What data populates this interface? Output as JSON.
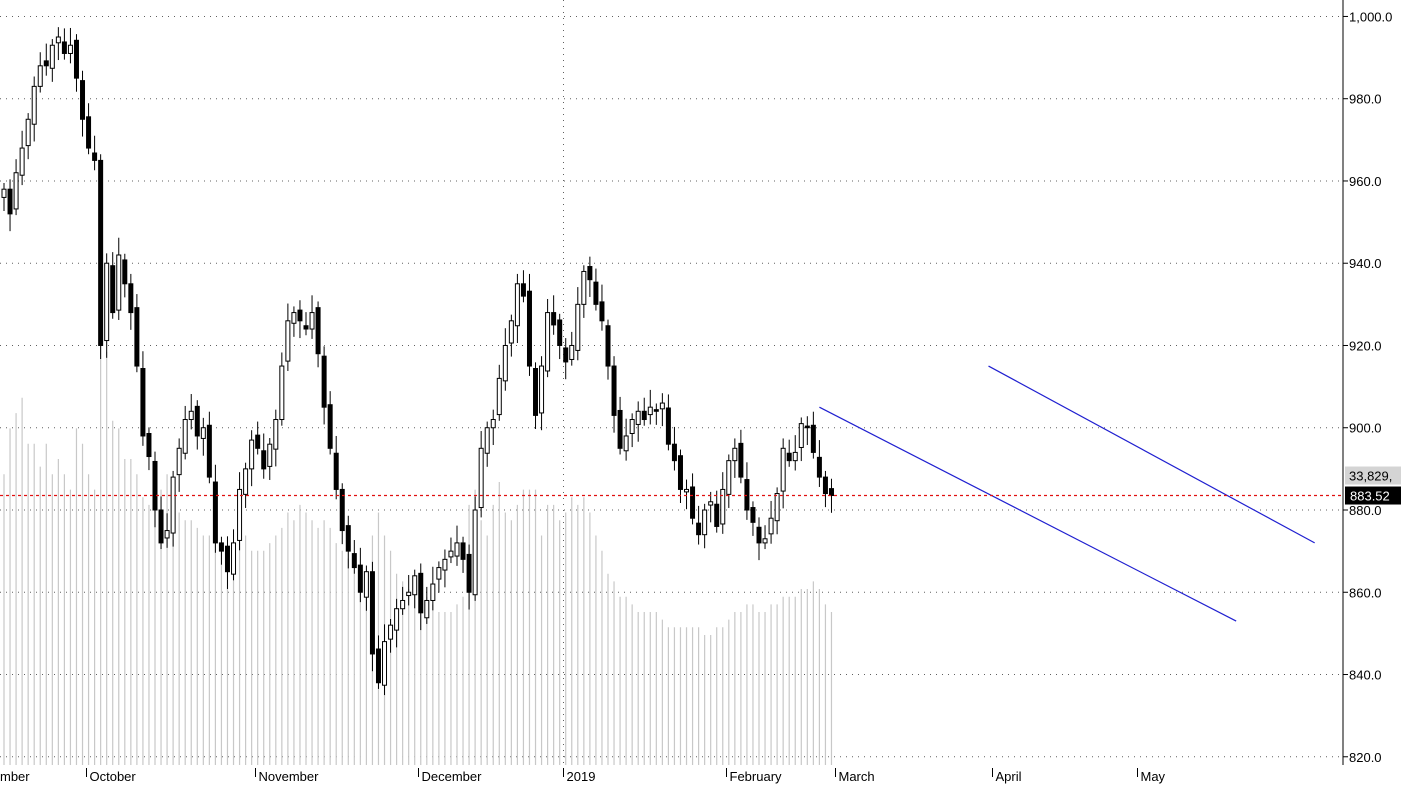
{
  "chart_data": {
    "type": "candlestick",
    "title": "",
    "xlabel": "",
    "ylabel": "",
    "ylim": [
      818,
      1004
    ],
    "y_ticks": [
      1000,
      980,
      960,
      940,
      920,
      900,
      880,
      860,
      840,
      820
    ],
    "y_tick_labels": [
      "1,000.0",
      "980.0",
      "960.0",
      "940.0",
      "920.0",
      "900.0",
      "880.0",
      "860.0",
      "840.0",
      "820.0"
    ],
    "x_month_labels": [
      {
        "label": "mber",
        "bar": 0
      },
      {
        "label": "October",
        "bar": 14
      },
      {
        "label": "November",
        "bar": 42
      },
      {
        "label": "December",
        "bar": 69
      },
      {
        "label": "2019",
        "bar": 93
      },
      {
        "label": "February",
        "bar": 120
      },
      {
        "label": "March",
        "bar": 138
      },
      {
        "label": "April",
        "bar": 164
      },
      {
        "label": "May",
        "bar": 188
      }
    ],
    "price_marker": {
      "value": 883.52,
      "label": "883.52",
      "color": "#e01010"
    },
    "volume_marker": {
      "label": "33,829,"
    },
    "closes": [
      958,
      952,
      962,
      968,
      975,
      983,
      988,
      988,
      993,
      995,
      991,
      993,
      985,
      975,
      968,
      965,
      920,
      940,
      928,
      942,
      935,
      928,
      915,
      898,
      893,
      880,
      872,
      875,
      888,
      895,
      902,
      904,
      898,
      900,
      888,
      872,
      870,
      865,
      872,
      885,
      890,
      897,
      895,
      890,
      896,
      902,
      915,
      926,
      928,
      926,
      924,
      928,
      918,
      905,
      895,
      885,
      875,
      870,
      866,
      860,
      865,
      845,
      838,
      848,
      852,
      856,
      858,
      860,
      864,
      855,
      858,
      862,
      866,
      868,
      870,
      872,
      868,
      860,
      880,
      895,
      900,
      902,
      912,
      920,
      926,
      935,
      932,
      915,
      903,
      915,
      928,
      925,
      920,
      916,
      920,
      930,
      938,
      936,
      930,
      926,
      915,
      903,
      895,
      898,
      902,
      904,
      902,
      905,
      904,
      906,
      896,
      892,
      885,
      885,
      878,
      874,
      880,
      882,
      876,
      885,
      892,
      895,
      888,
      880,
      877,
      872,
      873,
      878,
      884,
      895,
      892,
      894,
      901,
      900,
      894,
      888,
      884,
      883.52
    ],
    "volumes": [
      38,
      44,
      46,
      48,
      42,
      42,
      39,
      42,
      38,
      40,
      38,
      36,
      44,
      42,
      38,
      36,
      58,
      54,
      45,
      44,
      40,
      40,
      38,
      35,
      34,
      36,
      36,
      38,
      36,
      33,
      32,
      32,
      31,
      30,
      30,
      30,
      29,
      28,
      28,
      29,
      30,
      28,
      28,
      28,
      29,
      30,
      31,
      33,
      32,
      34,
      33,
      32,
      31,
      32,
      31,
      29,
      28,
      27,
      25,
      24,
      22,
      30,
      33,
      30,
      28,
      25,
      24,
      23,
      23,
      22,
      22,
      21,
      20,
      20,
      20,
      21,
      22,
      34,
      36,
      32,
      30,
      34,
      37,
      33,
      32,
      34,
      36,
      36,
      36,
      30,
      34,
      34,
      32,
      33,
      35,
      34,
      35,
      33,
      30,
      28,
      25,
      24,
      22,
      22,
      21,
      20,
      20,
      20,
      20,
      19,
      18,
      18,
      18,
      18,
      18,
      18,
      17,
      17,
      18,
      18,
      19,
      20,
      20,
      21,
      21,
      20,
      20,
      21,
      21,
      22,
      22,
      22,
      23,
      23,
      24,
      23,
      21,
      20
    ],
    "trendlines": [
      {
        "from": {
          "bar": 135,
          "value": 905
        },
        "to": {
          "bar": 204,
          "value": 853
        },
        "color": "#2020d0"
      },
      {
        "from": {
          "bar": 163,
          "value": 915
        },
        "to": {
          "bar": 217,
          "value": 872
        },
        "color": "#2020d0"
      }
    ],
    "colors": {
      "up_fill": "#ffffff",
      "down_fill": "#000000",
      "volume": "#c8c8c8",
      "background": "#ffffff"
    }
  }
}
